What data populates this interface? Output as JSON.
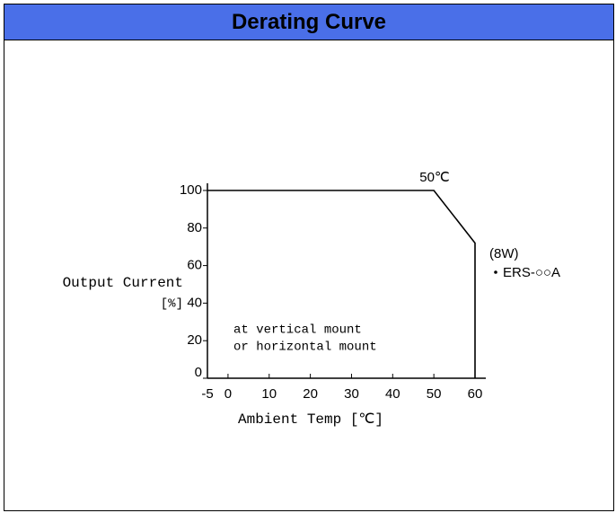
{
  "chart_data": {
    "type": "line",
    "title": "Derating Curve",
    "ylabel": "Output Current",
    "ylabel_unit": "[%]",
    "xlabel": "Ambient Temp [℃]",
    "x": [
      -5,
      50,
      60,
      60
    ],
    "series": [
      {
        "name": "ERS-○○A",
        "color": "#000000",
        "values": [
          100,
          100,
          72,
          0
        ]
      }
    ],
    "series_note": "(8W)",
    "annotations": [
      "50℃",
      "at vertical mount",
      "or horizontal mount"
    ],
    "xlim": [
      -5,
      60
    ],
    "xticks": [
      -5,
      0,
      10,
      20,
      30,
      40,
      50,
      60
    ],
    "ylim": [
      0,
      100
    ],
    "yticks": [
      0,
      20,
      40,
      60,
      80,
      100
    ],
    "grid": false
  }
}
